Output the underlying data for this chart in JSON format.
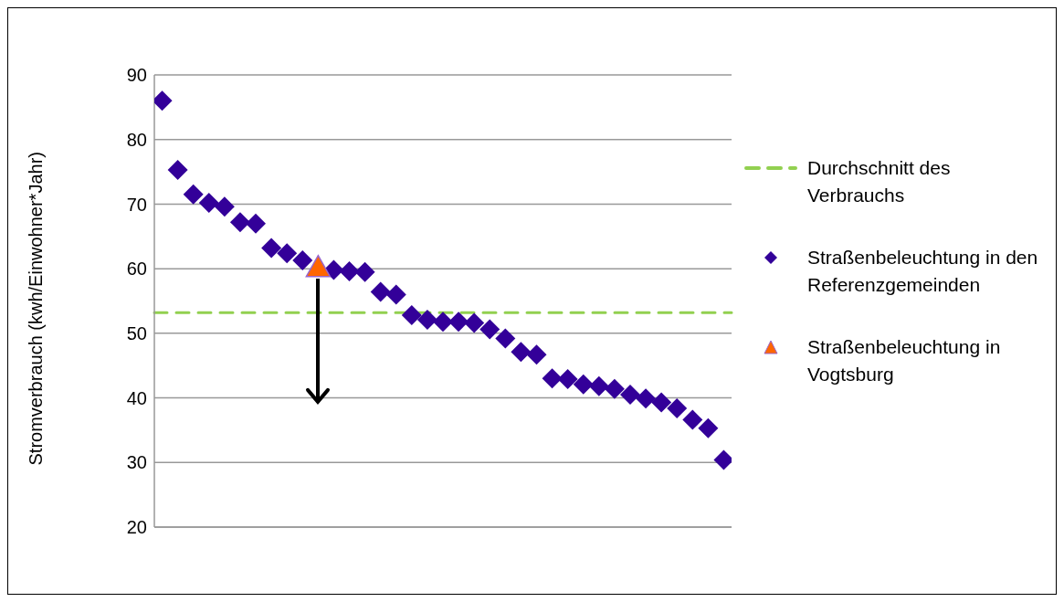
{
  "chart_data": {
    "type": "scatter",
    "ylabel": "Stromverbrauch (kwh/Einwohner*Jahr)",
    "categories": [
      null,
      null,
      null,
      null,
      null,
      null,
      null,
      null,
      null,
      null,
      null,
      null,
      null,
      null,
      null,
      null,
      null,
      null,
      null,
      null,
      null,
      null,
      null,
      null,
      null,
      null,
      null,
      null,
      null,
      null,
      null,
      null,
      null,
      null,
      null,
      null,
      null
    ],
    "series": [
      {
        "name": "Straßenbeleuchtung in den Referenzgemeinden",
        "color": "#330099",
        "marker": "diamond",
        "values": [
          86,
          75.3,
          71.5,
          70.2,
          69.6,
          67.2,
          67.0,
          63.2,
          62.4,
          61.3,
          null,
          59.8,
          59.6,
          59.5,
          56.4,
          56.0,
          52.8,
          52.1,
          51.8,
          51.8,
          51.6,
          50.6,
          49.2,
          47.1,
          46.7,
          43.0,
          42.9,
          42.1,
          41.8,
          41.4,
          40.5,
          39.9,
          39.3,
          38.4,
          36.6,
          35.3,
          30.4
        ]
      },
      {
        "name": "Straßenbeleuchtung in Vogtsburg",
        "color": "#ff6600",
        "marker": "triangle",
        "values": [
          null,
          null,
          null,
          null,
          null,
          null,
          null,
          null,
          null,
          null,
          60.2,
          null,
          null,
          null,
          null,
          null,
          null,
          null,
          null,
          null,
          null,
          null,
          null,
          null,
          null,
          null,
          null,
          null,
          null,
          null,
          null,
          null,
          null,
          null,
          null,
          null,
          null
        ]
      }
    ],
    "ref_lines": [
      {
        "axis": "y",
        "value": 53.2,
        "label": "Durchschnitt des Verbrauchs",
        "color": "#92d050",
        "line_style": "dashed"
      }
    ],
    "ylim": [
      20,
      90
    ],
    "yticks": [
      20,
      30,
      40,
      50,
      60,
      70,
      80,
      90
    ],
    "grid": "y",
    "legend": "right"
  }
}
